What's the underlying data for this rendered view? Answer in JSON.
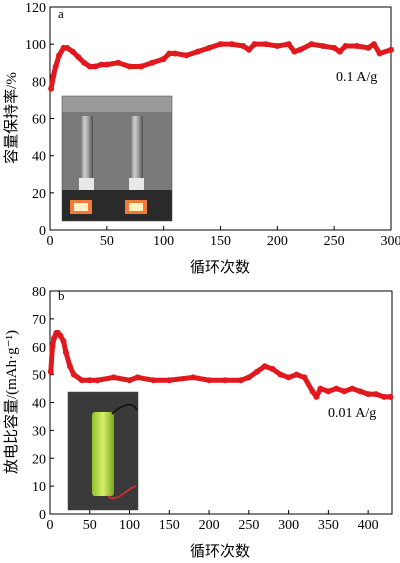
{
  "chart_data": [
    {
      "type": "scatter",
      "panel_label": "a",
      "ylabel": "容量保持率/%",
      "xlabel": "循环次数",
      "annotation": "0.1 A/g",
      "xlim": [
        0,
        300
      ],
      "ylim": [
        0,
        120
      ],
      "xticks": [
        0,
        50,
        100,
        150,
        200,
        250,
        300
      ],
      "yticks": [
        0,
        20,
        40,
        60,
        80,
        100,
        120
      ],
      "marker_color": "#e0191e",
      "inset": "photo-two-cylindrical-cells",
      "series": [
        {
          "x": [
            1,
            3,
            5,
            8,
            12,
            15,
            20,
            25,
            30,
            35,
            40,
            45,
            50,
            60,
            70,
            80,
            90,
            100,
            105,
            110,
            120,
            130,
            140,
            150,
            160,
            170,
            175,
            180,
            190,
            200,
            210,
            215,
            220,
            230,
            240,
            250,
            255,
            260,
            270,
            280,
            285,
            290,
            300
          ],
          "y": [
            76,
            83,
            88,
            94,
            98,
            98,
            96,
            93,
            90,
            88,
            88,
            89,
            89,
            90,
            88,
            88,
            90,
            92,
            95,
            95,
            94,
            96,
            98,
            100,
            100,
            99,
            97,
            100,
            100,
            99,
            100,
            96,
            97,
            100,
            99,
            98,
            96,
            99,
            99,
            98,
            100,
            95,
            97
          ]
        }
      ]
    },
    {
      "type": "scatter",
      "panel_label": "b",
      "ylabel": "放电比容量/(mAh·g⁻¹)",
      "xlabel": "循环次数",
      "annotation": "0.01 A/g",
      "xlim": [
        0,
        430
      ],
      "ylim": [
        0,
        80
      ],
      "xticks": [
        0,
        50,
        100,
        150,
        200,
        250,
        300,
        350,
        400
      ],
      "yticks": [
        0,
        10,
        20,
        30,
        40,
        50,
        60,
        70,
        80
      ],
      "marker_color": "#e0191e",
      "inset": "photo-single-green-cell",
      "series": [
        {
          "x": [
            1,
            3,
            5,
            8,
            10,
            13,
            17,
            20,
            25,
            30,
            40,
            50,
            60,
            80,
            100,
            110,
            130,
            150,
            180,
            200,
            220,
            240,
            250,
            260,
            270,
            280,
            290,
            300,
            310,
            320,
            330,
            335,
            340,
            350,
            360,
            370,
            380,
            390,
            400,
            410,
            420,
            428
          ],
          "y": [
            51,
            60,
            63,
            65,
            65,
            64,
            62,
            58,
            53,
            50,
            48,
            48,
            48,
            49,
            48,
            49,
            48,
            48,
            49,
            48,
            48,
            48,
            49,
            51,
            53,
            52,
            50,
            49,
            50,
            49,
            44,
            42,
            45,
            44,
            45,
            44,
            45,
            44,
            43,
            43,
            42,
            42
          ]
        }
      ]
    }
  ]
}
